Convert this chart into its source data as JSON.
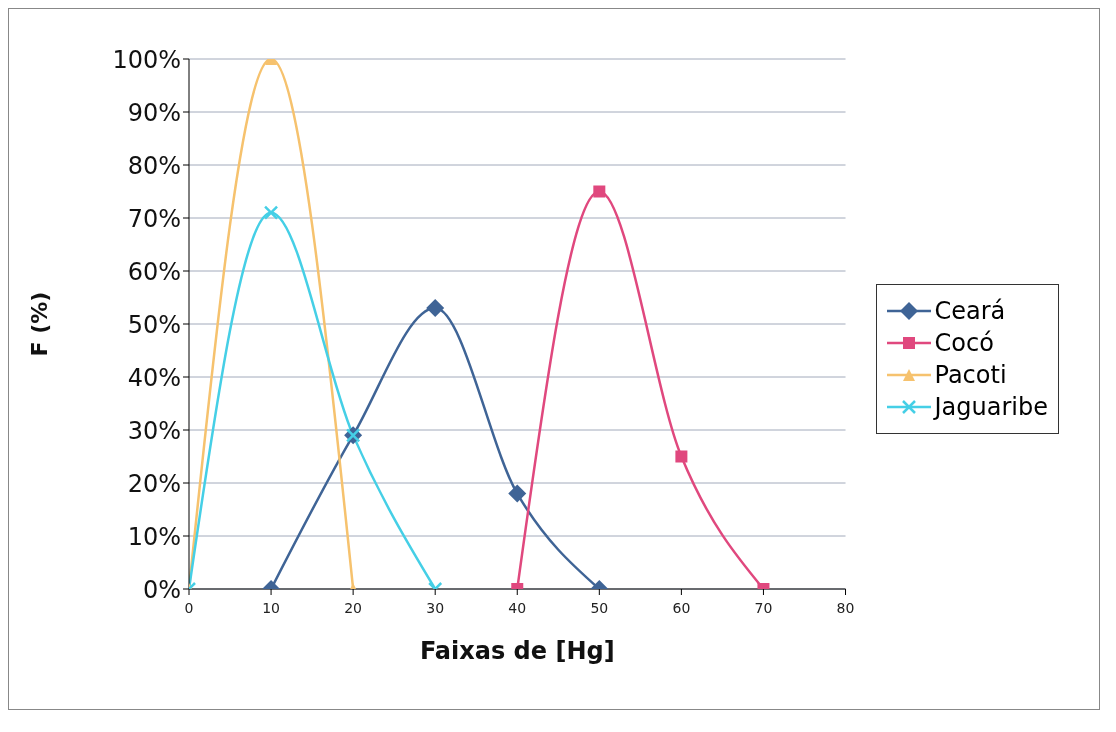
{
  "chart_data": {
    "type": "line",
    "xlabel": "Faixas de [Hg]",
    "ylabel": "F (%)",
    "xlim": [
      0,
      80
    ],
    "xticks": [
      0,
      10,
      20,
      30,
      40,
      50,
      60,
      70,
      80
    ],
    "ylim": [
      0,
      100
    ],
    "yticks": [
      {
        "value": 0,
        "label": "0%"
      },
      {
        "value": 10,
        "label": "10%"
      },
      {
        "value": 20,
        "label": "20%"
      },
      {
        "value": 30,
        "label": "30%"
      },
      {
        "value": 40,
        "label": "40%"
      },
      {
        "value": 50,
        "label": "50%"
      },
      {
        "value": 60,
        "label": "60%"
      },
      {
        "value": 70,
        "label": "70%"
      },
      {
        "value": 80,
        "label": "80%"
      },
      {
        "value": 90,
        "label": "90%"
      },
      {
        "value": 100,
        "label": "100%"
      }
    ],
    "grid": "y",
    "legend": "right",
    "series": [
      {
        "name": "Ceará",
        "color": "#3f6496",
        "marker": "diamond",
        "x": [
          10,
          20,
          30,
          40,
          50
        ],
        "values": [
          0,
          29,
          53,
          18,
          0
        ]
      },
      {
        "name": "Cocó",
        "color": "#e0487e",
        "marker": "square",
        "x": [
          40,
          50,
          60,
          70
        ],
        "values": [
          0,
          75,
          25,
          0
        ]
      },
      {
        "name": "Pacoti",
        "color": "#f6c26e",
        "marker": "triangle",
        "x": [
          0,
          10,
          20
        ],
        "values": [
          0,
          100,
          0
        ]
      },
      {
        "name": "Jaguaribe",
        "color": "#45cfe6",
        "marker": "cross",
        "x": [
          0,
          10,
          20,
          30
        ],
        "values": [
          0,
          71,
          29,
          0
        ]
      }
    ]
  }
}
